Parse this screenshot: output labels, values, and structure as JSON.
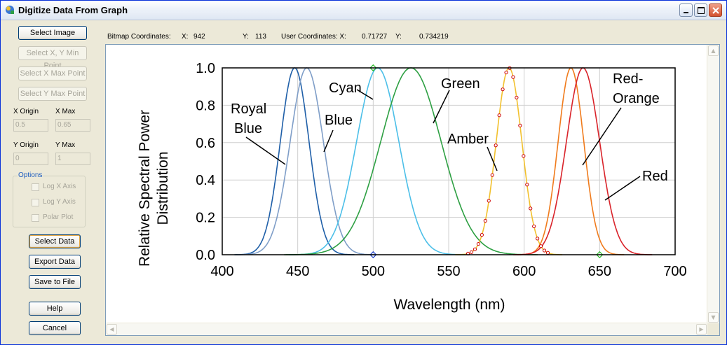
{
  "window": {
    "title": "Digitize Data From Graph",
    "minimize_icon": "minimize-icon",
    "maximize_icon": "maximize-icon",
    "close_icon": "close-icon"
  },
  "sidebar": {
    "select_image": "Select Image",
    "select_xy_min": "Select X, Y Min Point",
    "select_x_max": "Select X Max Point",
    "select_y_max": "Select Y Max Point",
    "x_origin_label": "X Origin",
    "x_max_label": "X Max",
    "x_origin_value": "0.5",
    "x_max_value": "0.65",
    "y_origin_label": "Y Origin",
    "y_max_label": "Y Max",
    "y_origin_value": "0",
    "y_max_value": "1",
    "options_title": "Options",
    "log_x": "Log X Axis",
    "log_y": "Log Y Axis",
    "polar": "Polar Plot",
    "select_data": "Select Data",
    "export_data": "Export Data",
    "save_to_file": "Save to File",
    "help": "Help",
    "cancel": "Cancel"
  },
  "coords": {
    "bitmap_label": "Bitmap Coordinates:",
    "x_label": "X:",
    "x_value": "942",
    "y_label": "Y:",
    "y_value": "113",
    "user_label": "User Coordinates: X:",
    "user_x_value": "0.71727",
    "user_y_label": "Y:",
    "user_y_value": "0.734219"
  },
  "chart_data": {
    "type": "line",
    "title": "",
    "xlabel": "Wavelength (nm)",
    "ylabel_line1": "Relative Spectral Power",
    "ylabel_line2": "Distribution",
    "xlim": [
      400,
      700
    ],
    "ylim": [
      0,
      1.0
    ],
    "x_ticks": [
      "400",
      "450",
      "500",
      "550",
      "600",
      "650",
      "700"
    ],
    "y_ticks": [
      "0.0",
      "0.2",
      "0.4",
      "0.6",
      "0.8",
      "1.0"
    ],
    "grid": true,
    "series": [
      {
        "name": "Royal Blue",
        "peak": 448,
        "sigma": 9.5,
        "color": "#1f5fa8"
      },
      {
        "name": "Blue",
        "peak": 456,
        "sigma": 11,
        "color": "#7f9ec8"
      },
      {
        "name": "Cyan",
        "peak": 503,
        "sigma": 14,
        "color": "#4cbfe8"
      },
      {
        "name": "Green",
        "peak": 525,
        "sigma": 20,
        "color": "#2ea043"
      },
      {
        "name": "Amber",
        "peak": 590,
        "sigma": 8.5,
        "color": "#f2c12e"
      },
      {
        "name": "Red-Orange",
        "peak": 631,
        "sigma": 8.5,
        "color": "#f07b1c"
      },
      {
        "name": "Red",
        "peak": 639,
        "sigma": 11,
        "color": "#d9232a"
      }
    ],
    "labels": {
      "royal_line1": "Royal",
      "royal_line2": "Blue",
      "blue": "Blue",
      "cyan": "Cyan",
      "green": "Green",
      "amber": "Amber",
      "redorange_line1": "Red-",
      "redorange_line2": "Orange",
      "red": "Red"
    },
    "marker_color": "#cc0000"
  }
}
